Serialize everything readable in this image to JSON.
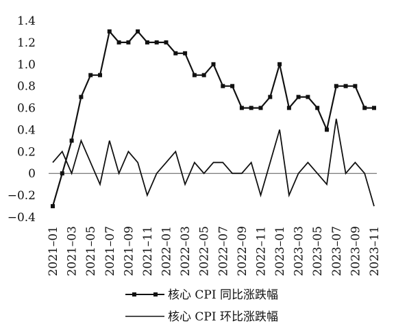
{
  "chart_data": {
    "type": "line",
    "x": [
      "2021-01",
      "2021-02",
      "2021-03",
      "2021-04",
      "2021-05",
      "2021-06",
      "2021-07",
      "2021-08",
      "2021-09",
      "2021-10",
      "2021-11",
      "2021-12",
      "2022-01",
      "2022-02",
      "2022-03",
      "2022-04",
      "2022-05",
      "2022-06",
      "2022-07",
      "2022-08",
      "2022-09",
      "2022-10",
      "2022-11",
      "2022-12",
      "2023-01",
      "2023-02",
      "2023-03",
      "2023-04",
      "2023-05",
      "2023-06",
      "2023-07",
      "2023-08",
      "2023-09",
      "2023-10",
      "2023-11"
    ],
    "x_tick_labels": [
      "2021–01",
      "2021–03",
      "2021–05",
      "2021–07",
      "2021–09",
      "2021–11",
      "2022–01",
      "2022–03",
      "2022–05",
      "2022–07",
      "2022–09",
      "2022–11",
      "2023–01",
      "2023–03",
      "2023–05",
      "2023–07",
      "2023–09",
      "2023–11"
    ],
    "y_tick_labels": [
      "1.4",
      "1.2",
      "1.0",
      "0.8",
      "0.6",
      "0.4",
      "0.2",
      "0",
      "−0.2",
      "−0.4"
    ],
    "ylim": [
      -0.4,
      1.4
    ],
    "y_ticks": [
      1.4,
      1.2,
      1.0,
      0.8,
      0.6,
      0.4,
      0.2,
      0,
      -0.2,
      -0.4
    ],
    "series": [
      {
        "name": "核心 CPI 同比涨跌幅",
        "marker": "square",
        "values": [
          -0.3,
          0.0,
          0.3,
          0.7,
          0.9,
          0.9,
          1.3,
          1.2,
          1.2,
          1.3,
          1.2,
          1.2,
          1.2,
          1.1,
          1.1,
          0.9,
          0.9,
          1.0,
          0.8,
          0.8,
          0.6,
          0.6,
          0.6,
          0.7,
          1.0,
          0.6,
          0.7,
          0.7,
          0.6,
          0.4,
          0.8,
          0.8,
          0.8,
          0.6,
          0.6
        ]
      },
      {
        "name": "核心 CPI 环比涨跌幅",
        "marker": "none",
        "values": [
          0.1,
          0.2,
          0.0,
          0.3,
          0.1,
          -0.1,
          0.3,
          0.0,
          0.2,
          0.1,
          -0.2,
          0.0,
          0.1,
          0.2,
          -0.1,
          0.1,
          0.0,
          0.1,
          0.1,
          0.0,
          0.0,
          0.1,
          -0.2,
          0.1,
          0.4,
          -0.2,
          0.0,
          0.1,
          0.0,
          -0.1,
          0.5,
          0.0,
          0.1,
          0.0,
          -0.3
        ]
      }
    ],
    "grid": false,
    "legend_position": "bottom",
    "colors": {
      "line": "#111111",
      "axis": "#555555"
    }
  }
}
